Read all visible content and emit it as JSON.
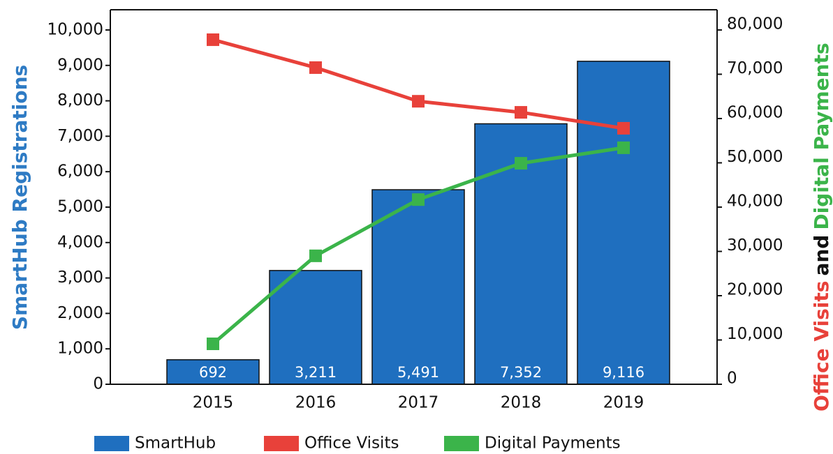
{
  "chart_data": {
    "type": "bar_line",
    "categories": [
      "2015",
      "2016",
      "2017",
      "2018",
      "2019"
    ],
    "ylabel": "SmartHub Registrations",
    "y2label_parts": [
      {
        "text": "Office Visits",
        "color": "#e8413a"
      },
      {
        "text": "and",
        "color": "#111111"
      },
      {
        "text": "Digital Payments",
        "color": "#3bb44a"
      }
    ],
    "series": [
      {
        "name": "SmartHub",
        "color": "#1f6fbf",
        "kind": "bar",
        "values": [
          692,
          3211,
          5491,
          7352,
          9116
        ],
        "value_labels": [
          "692",
          "3,211",
          "5,491",
          "7,352",
          "9,116"
        ]
      },
      {
        "name": "Office Visits",
        "color": "#e8413a",
        "kind": "line",
        "axis": "y2",
        "values": [
          77800,
          71500,
          63900,
          61400,
          57800
        ]
      },
      {
        "name": "Digital Payments",
        "color": "#3bb44a",
        "kind": "line",
        "axis": "y2",
        "values": [
          9130,
          29000,
          41700,
          49900,
          53400
        ]
      }
    ],
    "ylim": [
      0,
      10570
    ],
    "yticks": [
      0,
      {
        "value": 1000,
        "label": "1,000"
      },
      {
        "value": 2000,
        "label": "2,000"
      },
      {
        "value": 3000,
        "label": "3,000"
      },
      {
        "value": 4000,
        "label": "4,000"
      },
      {
        "value": 5000,
        "label": "5,000"
      },
      {
        "value": 6000,
        "label": "6,000"
      },
      {
        "value": 7000,
        "label": "7,000"
      },
      {
        "value": 8000,
        "label": "8,000"
      },
      {
        "value": 9000,
        "label": "9,000"
      },
      {
        "value": 10000,
        "label": "10,000"
      }
    ],
    "y2lim": [
      0,
      84560
    ],
    "y2ticks": [
      0,
      {
        "value": 10000,
        "label": "10,000"
      },
      {
        "value": 20000,
        "label": "20,000"
      },
      {
        "value": 30000,
        "label": "30,000"
      },
      {
        "value": 40000,
        "label": "40,000"
      },
      {
        "value": 50000,
        "label": "50,000"
      },
      {
        "value": 60000,
        "label": "60,000"
      },
      {
        "value": 70000,
        "label": "70,000"
      },
      {
        "value": 80000,
        "label": "80,000"
      }
    ],
    "legend": "bottom"
  }
}
